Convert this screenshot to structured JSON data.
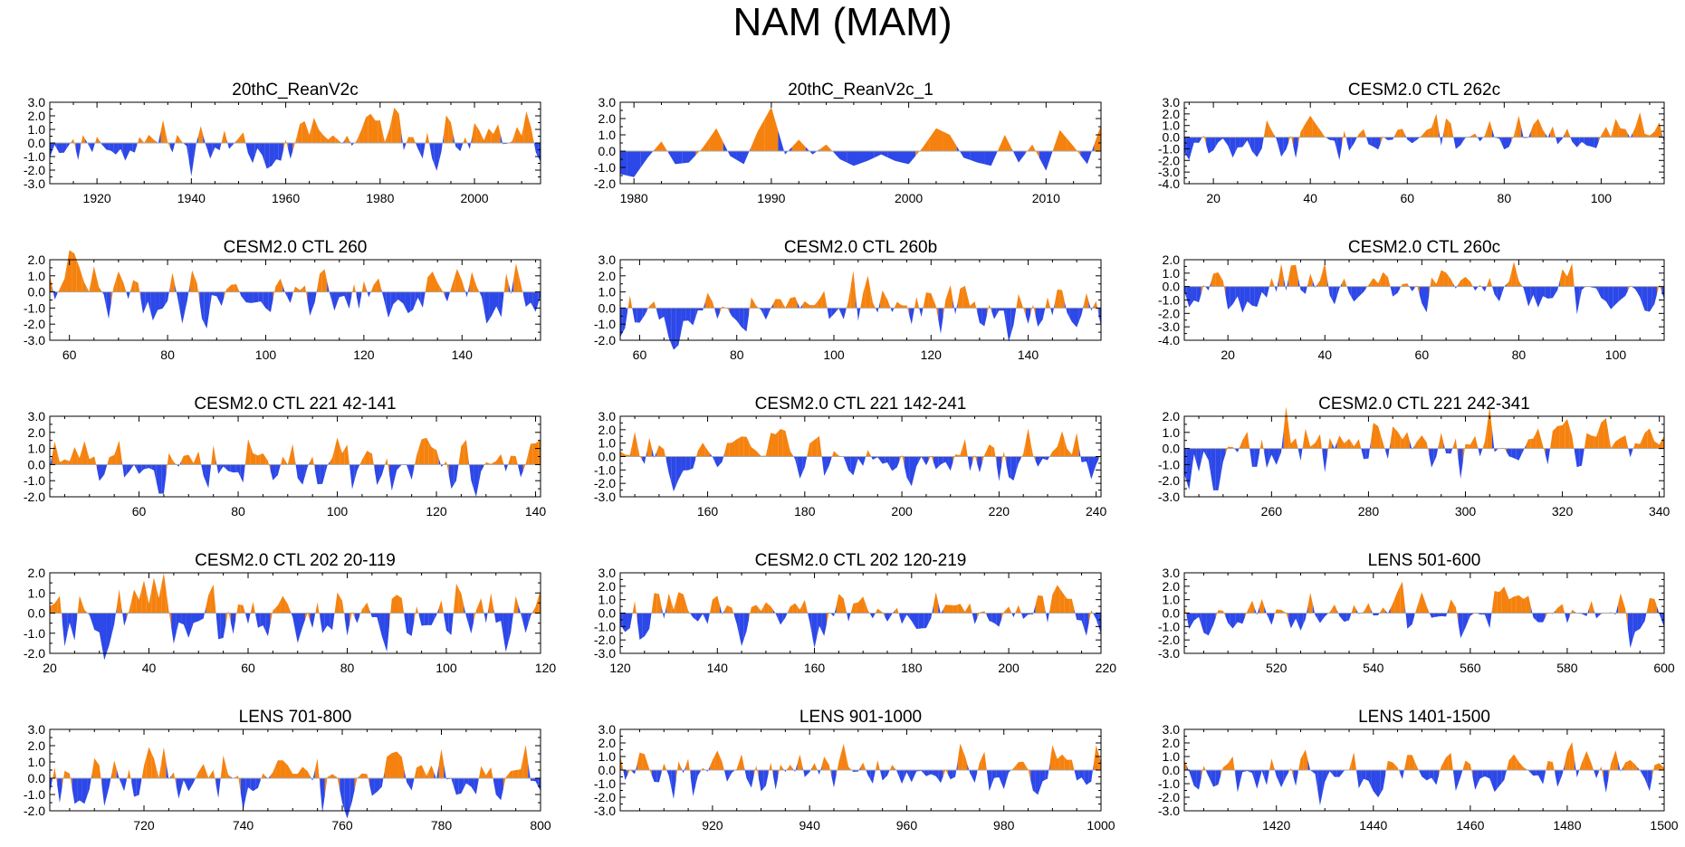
{
  "page_title": "NAM (MAM)",
  "colors": {
    "positive": "#f5820f",
    "negative": "#2d48e8",
    "axis": "#000000",
    "zero_line": "#a8a8a8"
  },
  "chart_data": [
    {
      "type": "area",
      "title": "20thC_ReanV2c",
      "x_range": [
        1910,
        2014
      ],
      "xticks": [
        1920,
        1940,
        1960,
        1980,
        2000
      ],
      "xtick_labels": [
        "1920",
        "1940",
        "1960",
        "1980",
        "2000"
      ],
      "ylim": [
        -3.0,
        3.0
      ],
      "yticks": [
        3.0,
        2.0,
        1.0,
        0.0,
        -1.0,
        -2.0,
        -3.0
      ],
      "ytick_labels": [
        "3.0",
        "2.0",
        "1.0",
        "0.0",
        "-1.0",
        "-2.0",
        "-3.0"
      ],
      "seed": 11
    },
    {
      "type": "area",
      "title": "20thC_ReanV2c_1",
      "x_range": [
        1979,
        2014
      ],
      "xticks": [
        1980,
        1990,
        2000,
        2010
      ],
      "xtick_labels": [
        "1980",
        "1990",
        "2000",
        "2010"
      ],
      "ylim": [
        -2.0,
        3.0
      ],
      "yticks": [
        3.0,
        2.0,
        1.0,
        0.0,
        -1.0,
        -2.0
      ],
      "ytick_labels": [
        "3.0",
        "2.0",
        "1.0",
        "0.0",
        "-1.0",
        "-2.0"
      ],
      "seed": 23,
      "values": [
        -1.4,
        -1.6,
        -0.4,
        0.6,
        -0.8,
        -0.7,
        0.2,
        1.4,
        -0.3,
        -0.8,
        1.2,
        2.7,
        -0.2,
        0.7,
        -0.2,
        0.4,
        -0.5,
        -0.9,
        -0.6,
        -0.2,
        -0.6,
        -0.8,
        0.2,
        1.4,
        1.0,
        -0.4,
        -0.7,
        -0.9,
        1.0,
        -0.7,
        0.4,
        -1.2,
        1.3,
        0.3,
        -0.8,
        1.6
      ]
    },
    {
      "type": "area",
      "title": "CESM2.0 CTL 262c",
      "x_range": [
        14,
        113
      ],
      "xticks": [
        20,
        40,
        60,
        80,
        100
      ],
      "xtick_labels": [
        "20",
        "40",
        "60",
        "80",
        "100"
      ],
      "ylim": [
        -4.0,
        3.0
      ],
      "yticks": [
        3.0,
        2.0,
        1.0,
        0.0,
        -1.0,
        -2.0,
        -3.0,
        -4.0
      ],
      "ytick_labels": [
        "3.0",
        "2.0",
        "1.0",
        "0.0",
        "-1.0",
        "-2.0",
        "-3.0",
        "-4.0"
      ],
      "seed": 37
    },
    {
      "type": "area",
      "title": "CESM2.0 CTL 260",
      "x_range": [
        56,
        156
      ],
      "xticks": [
        60,
        80,
        100,
        120,
        140
      ],
      "xtick_labels": [
        "60",
        "80",
        "100",
        "120",
        "140"
      ],
      "ylim": [
        -3.0,
        2.0
      ],
      "yticks": [
        2.0,
        1.0,
        0.0,
        -1.0,
        -2.0,
        -3.0
      ],
      "ytick_labels": [
        "2.0",
        "1.0",
        "0.0",
        "-1.0",
        "-2.0",
        "-3.0"
      ],
      "seed": 41
    },
    {
      "type": "area",
      "title": "CESM2.0 CTL 260b",
      "x_range": [
        56,
        155
      ],
      "xticks": [
        60,
        80,
        100,
        120,
        140
      ],
      "xtick_labels": [
        "60",
        "80",
        "100",
        "120",
        "140"
      ],
      "ylim": [
        -2.0,
        3.0
      ],
      "yticks": [
        3.0,
        2.0,
        1.0,
        0.0,
        -1.0,
        -2.0
      ],
      "ytick_labels": [
        "3.0",
        "2.0",
        "1.0",
        "0.0",
        "-1.0",
        "-2.0"
      ],
      "seed": 53
    },
    {
      "type": "area",
      "title": "CESM2.0 CTL 260c",
      "x_range": [
        11,
        110
      ],
      "xticks": [
        20,
        40,
        60,
        80,
        100
      ],
      "xtick_labels": [
        "20",
        "40",
        "60",
        "80",
        "100"
      ],
      "ylim": [
        -4.0,
        2.0
      ],
      "yticks": [
        2.0,
        1.0,
        0.0,
        -1.0,
        -2.0,
        -3.0,
        -4.0
      ],
      "ytick_labels": [
        "2.0",
        "1.0",
        "0.0",
        "-1.0",
        "-2.0",
        "-3.0",
        "-4.0"
      ],
      "seed": 67
    },
    {
      "type": "area",
      "title": "CESM2.0 CTL 221 42-141",
      "x_range": [
        42,
        141
      ],
      "xticks": [
        60,
        80,
        100,
        120,
        140
      ],
      "xtick_labels": [
        "60",
        "80",
        "100",
        "120",
        "140"
      ],
      "ylim": [
        -2.0,
        3.0
      ],
      "yticks": [
        3.0,
        2.0,
        1.0,
        0.0,
        -1.0,
        -2.0
      ],
      "ytick_labels": [
        "3.0",
        "2.0",
        "1.0",
        "0.0",
        "-1.0",
        "-2.0"
      ],
      "seed": 71
    },
    {
      "type": "area",
      "title": "CESM2.0 CTL 221 142-241",
      "x_range": [
        142,
        241
      ],
      "xticks": [
        160,
        180,
        200,
        220,
        240
      ],
      "xtick_labels": [
        "160",
        "180",
        "200",
        "220",
        "240"
      ],
      "ylim": [
        -3.0,
        3.0
      ],
      "yticks": [
        3.0,
        2.0,
        1.0,
        0.0,
        -1.0,
        -2.0,
        -3.0
      ],
      "ytick_labels": [
        "3.0",
        "2.0",
        "1.0",
        "0.0",
        "-1.0",
        "-2.0",
        "-3.0"
      ],
      "seed": 83
    },
    {
      "type": "area",
      "title": "CESM2.0 CTL 221 242-341",
      "x_range": [
        242,
        341
      ],
      "xticks": [
        260,
        280,
        300,
        320,
        340
      ],
      "xtick_labels": [
        "260",
        "280",
        "300",
        "320",
        "340"
      ],
      "ylim": [
        -3.0,
        2.0
      ],
      "yticks": [
        2.0,
        1.0,
        0.0,
        -1.0,
        -2.0,
        -3.0
      ],
      "ytick_labels": [
        "2.0",
        "1.0",
        "0.0",
        "-1.0",
        "-2.0",
        "-3.0"
      ],
      "seed": 97
    },
    {
      "type": "area",
      "title": "CESM2.0 CTL 202 20-119",
      "x_range": [
        20,
        119
      ],
      "xticks": [
        20,
        40,
        60,
        80,
        100,
        120
      ],
      "xtick_labels": [
        "20",
        "40",
        "60",
        "80",
        "100",
        "120"
      ],
      "ylim": [
        -2.0,
        2.0
      ],
      "yticks": [
        2.0,
        1.0,
        0.0,
        -1.0,
        -2.0
      ],
      "ytick_labels": [
        "2.0",
        "1.0",
        "0.0",
        "-1.0",
        "-2.0"
      ],
      "seed": 101
    },
    {
      "type": "area",
      "title": "CESM2.0 CTL 202 120-219",
      "x_range": [
        120,
        219
      ],
      "xticks": [
        120,
        140,
        160,
        180,
        200,
        220
      ],
      "xtick_labels": [
        "120",
        "140",
        "160",
        "180",
        "200",
        "220"
      ],
      "ylim": [
        -3.0,
        3.0
      ],
      "yticks": [
        3.0,
        2.0,
        1.0,
        0.0,
        -1.0,
        -2.0,
        -3.0
      ],
      "ytick_labels": [
        "3.0",
        "2.0",
        "1.0",
        "0.0",
        "-1.0",
        "-2.0",
        "-3.0"
      ],
      "seed": 113
    },
    {
      "type": "area",
      "title": "LENS 501-600",
      "x_range": [
        501,
        600
      ],
      "xticks": [
        520,
        540,
        560,
        580,
        600
      ],
      "xtick_labels": [
        "520",
        "540",
        "560",
        "580",
        "600"
      ],
      "ylim": [
        -3.0,
        3.0
      ],
      "yticks": [
        3.0,
        2.0,
        1.0,
        0.0,
        -1.0,
        -2.0,
        -3.0
      ],
      "ytick_labels": [
        "3.0",
        "2.0",
        "1.0",
        "0.0",
        "-1.0",
        "-2.0",
        "-3.0"
      ],
      "seed": 127
    },
    {
      "type": "area",
      "title": "LENS 701-800",
      "x_range": [
        701,
        800
      ],
      "xticks": [
        720,
        740,
        760,
        780,
        800
      ],
      "xtick_labels": [
        "720",
        "740",
        "760",
        "780",
        "800"
      ],
      "ylim": [
        -2.0,
        3.0
      ],
      "yticks": [
        3.0,
        2.0,
        1.0,
        0.0,
        -1.0,
        -2.0
      ],
      "ytick_labels": [
        "3.0",
        "2.0",
        "1.0",
        "0.0",
        "-1.0",
        "-2.0"
      ],
      "seed": 131
    },
    {
      "type": "area",
      "title": "LENS 901-1000",
      "x_range": [
        901,
        1000
      ],
      "xticks": [
        920,
        940,
        960,
        980,
        1000
      ],
      "xtick_labels": [
        "920",
        "940",
        "960",
        "980",
        "1000"
      ],
      "ylim": [
        -3.0,
        3.0
      ],
      "yticks": [
        3.0,
        2.0,
        1.0,
        0.0,
        -1.0,
        -2.0,
        -3.0
      ],
      "ytick_labels": [
        "3.0",
        "2.0",
        "1.0",
        "0.0",
        "-1.0",
        "-2.0",
        "-3.0"
      ],
      "seed": 139
    },
    {
      "type": "area",
      "title": "LENS 1401-1500",
      "x_range": [
        1401,
        1500
      ],
      "xticks": [
        1420,
        1440,
        1460,
        1480,
        1500
      ],
      "xtick_labels": [
        "1420",
        "1440",
        "1460",
        "1480",
        "1500"
      ],
      "ylim": [
        -3.0,
        3.0
      ],
      "yticks": [
        3.0,
        2.0,
        1.0,
        0.0,
        -1.0,
        -2.0,
        -3.0
      ],
      "ytick_labels": [
        "3.0",
        "2.0",
        "1.0",
        "0.0",
        "-1.0",
        "-2.0",
        "-3.0"
      ],
      "seed": 149
    }
  ]
}
